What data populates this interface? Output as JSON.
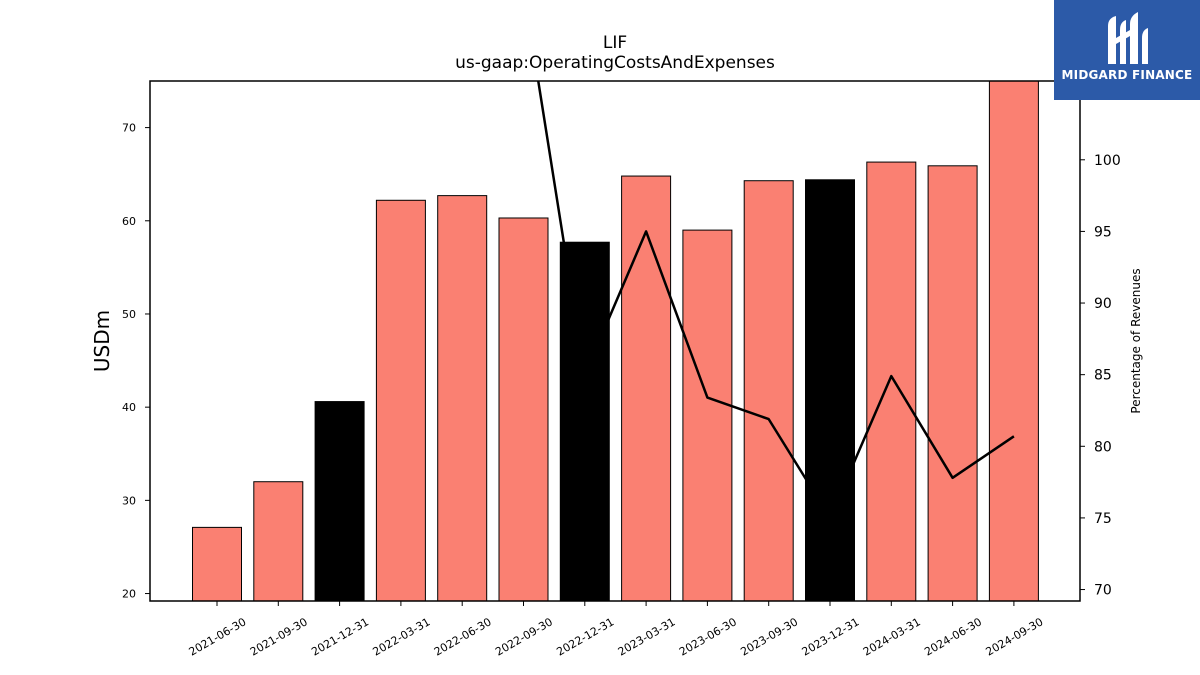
{
  "chart_data": {
    "type": "bar",
    "title": "LIF",
    "subtitle": "us-gaap:OperatingCostsAndExpenses",
    "ylabel": "USDm",
    "y2label": "Percentage of Revenues",
    "ylim": [
      19.2,
      75
    ],
    "y2lim": [
      69.2,
      105.5
    ],
    "yticks": [
      20,
      30,
      40,
      50,
      60,
      70
    ],
    "y2ticks": [
      70,
      75,
      80,
      85,
      90,
      95,
      100
    ],
    "categories": [
      "2021-06-30",
      "2021-09-30",
      "2021-12-31",
      "2022-03-31",
      "2022-06-30",
      "2022-09-30",
      "2022-12-31",
      "2023-03-31",
      "2023-06-30",
      "2023-09-30",
      "2023-12-31",
      "2024-03-31",
      "2024-06-30",
      "2024-09-30"
    ],
    "series": [
      {
        "kind": "bar",
        "values": [
          27.1,
          32.0,
          40.6,
          62.2,
          62.7,
          60.3,
          57.7,
          64.8,
          59.0,
          64.3,
          64.4,
          66.3,
          65.9,
          75.0
        ],
        "colors": [
          "#fa8072",
          "#fa8072",
          "#000000",
          "#fa8072",
          "#fa8072",
          "#fa8072",
          "#000000",
          "#fa8072",
          "#fa8072",
          "#fa8072",
          "#000000",
          "#fa8072",
          "#fa8072",
          "#fa8072"
        ]
      },
      {
        "kind": "line",
        "axis": "right",
        "values": [
          null,
          null,
          null,
          null,
          null,
          112.0,
          85.0,
          95.0,
          83.4,
          81.9,
          75.0,
          84.9,
          77.8,
          80.7
        ]
      }
    ]
  },
  "logo": {
    "text": "MIDGARD FINANCE",
    "background": "#2c5aa8"
  }
}
